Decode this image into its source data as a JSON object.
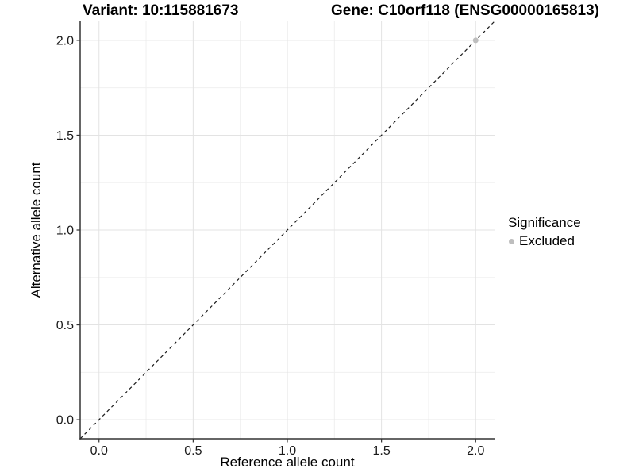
{
  "titles": {
    "variant": "Variant: 10:115881673",
    "gene": "Gene: C10orf118 (ENSG00000165813)"
  },
  "chart_data": {
    "type": "scatter",
    "title": "Variant: 10:115881673 / Gene: C10orf118 (ENSG00000165813)",
    "xlabel": "Reference allele count",
    "ylabel": "Alternative allele count",
    "xlim": [
      -0.1,
      2.1
    ],
    "ylim": [
      -0.1,
      2.1
    ],
    "x_ticks": {
      "values": [
        0,
        0.5,
        1,
        1.5,
        2
      ],
      "labels": [
        "0.0",
        "0.5",
        "1.0",
        "1.5",
        "2.0"
      ]
    },
    "y_ticks": {
      "values": [
        0,
        0.5,
        1,
        1.5,
        2
      ],
      "labels": [
        "0.0",
        "0.5",
        "1.0",
        "1.5",
        "2.0"
      ]
    },
    "minor_gridlines": [
      0.25,
      0.75,
      1.25,
      1.75
    ],
    "grid": "major+minor",
    "reference_line": {
      "slope": 1,
      "intercept": 0,
      "style": "dashed"
    },
    "series": [
      {
        "name": "Excluded",
        "color": "#bebebe",
        "points": [
          {
            "x": 2.0,
            "y": 2.0
          }
        ]
      }
    ],
    "legend_position": "right"
  },
  "legend": {
    "title": "Significance",
    "items": [
      {
        "label": "Excluded",
        "color": "#bebebe",
        "marker": "circle"
      }
    ]
  },
  "colors": {
    "background": "#ffffff",
    "grid_major": "#e3e3e3",
    "grid_minor": "#f0f0f0",
    "axis_line": "#333333",
    "tick_label": "#1a1a1a",
    "title_text": "#000000",
    "reference_line": "#1a1a1a",
    "point": "#bebebe"
  }
}
